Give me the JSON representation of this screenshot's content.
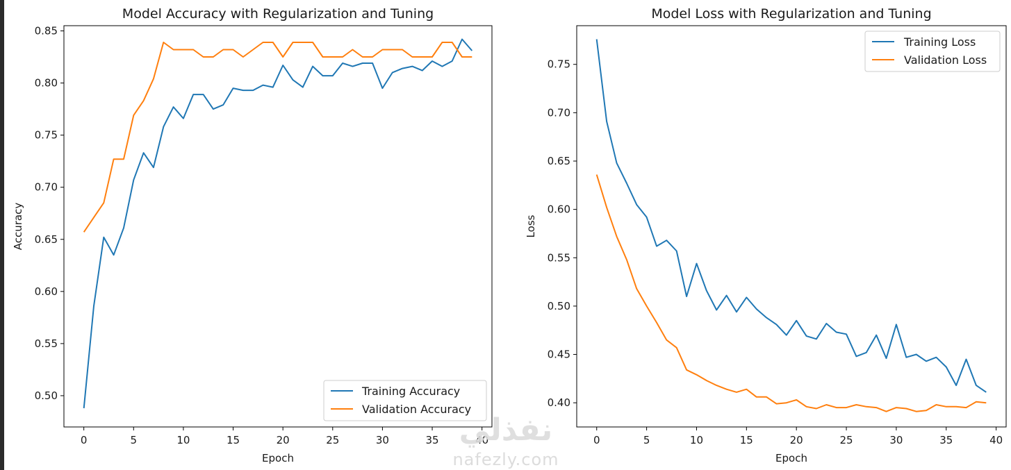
{
  "chart_data": [
    {
      "type": "line",
      "title": "Model Accuracy with Regularization and Tuning",
      "xlabel": "Epoch",
      "ylabel": "Accuracy",
      "xlim": [
        -2,
        41
      ],
      "ylim": [
        0.47,
        0.855
      ],
      "xticks": [
        0,
        5,
        10,
        15,
        20,
        25,
        30,
        35,
        40
      ],
      "yticks": [
        0.5,
        0.55,
        0.6,
        0.65,
        0.7,
        0.75,
        0.8,
        0.85
      ],
      "ytick_labels": [
        "0.50",
        "0.55",
        "0.60",
        "0.65",
        "0.70",
        "0.75",
        "0.80",
        "0.85"
      ],
      "legend_position": "lower-right",
      "series": [
        {
          "name": "Training Accuracy",
          "color": "#1f77b4",
          "x": [
            0,
            1,
            2,
            3,
            4,
            5,
            6,
            7,
            8,
            9,
            10,
            11,
            12,
            13,
            14,
            15,
            16,
            17,
            18,
            19,
            20,
            21,
            22,
            23,
            24,
            25,
            26,
            27,
            28,
            29,
            30,
            31,
            32,
            33,
            34,
            35,
            36,
            37,
            38,
            39
          ],
          "values": [
            0.488,
            0.586,
            0.652,
            0.635,
            0.661,
            0.707,
            0.733,
            0.719,
            0.758,
            0.777,
            0.766,
            0.789,
            0.789,
            0.775,
            0.779,
            0.795,
            0.793,
            0.793,
            0.798,
            0.796,
            0.817,
            0.803,
            0.796,
            0.816,
            0.807,
            0.807,
            0.819,
            0.816,
            0.819,
            0.819,
            0.795,
            0.81,
            0.814,
            0.816,
            0.812,
            0.821,
            0.816,
            0.821,
            0.842,
            0.831
          ]
        },
        {
          "name": "Validation Accuracy",
          "color": "#ff7f0e",
          "x": [
            0,
            1,
            2,
            3,
            4,
            5,
            6,
            7,
            8,
            9,
            10,
            11,
            12,
            13,
            14,
            15,
            16,
            17,
            18,
            19,
            20,
            21,
            22,
            23,
            24,
            25,
            26,
            27,
            28,
            29,
            30,
            31,
            32,
            33,
            34,
            35,
            36,
            37,
            38,
            39
          ],
          "values": [
            0.657,
            0.671,
            0.685,
            0.727,
            0.727,
            0.769,
            0.783,
            0.804,
            0.839,
            0.832,
            0.832,
            0.832,
            0.825,
            0.825,
            0.832,
            0.832,
            0.825,
            0.832,
            0.839,
            0.839,
            0.825,
            0.839,
            0.839,
            0.839,
            0.825,
            0.825,
            0.825,
            0.832,
            0.825,
            0.825,
            0.832,
            0.832,
            0.832,
            0.825,
            0.825,
            0.825,
            0.839,
            0.839,
            0.825,
            0.825
          ]
        }
      ]
    },
    {
      "type": "line",
      "title": "Model Loss with Regularization and Tuning",
      "xlabel": "Epoch",
      "ylabel": "Loss",
      "xlim": [
        -2,
        41
      ],
      "ylim": [
        0.375,
        0.79
      ],
      "xticks": [
        0,
        5,
        10,
        15,
        20,
        25,
        30,
        35,
        40
      ],
      "yticks": [
        0.4,
        0.45,
        0.5,
        0.55,
        0.6,
        0.65,
        0.7,
        0.75
      ],
      "ytick_labels": [
        "0.40",
        "0.45",
        "0.50",
        "0.55",
        "0.60",
        "0.65",
        "0.70",
        "0.75"
      ],
      "legend_position": "upper-right",
      "series": [
        {
          "name": "Training Loss",
          "color": "#1f77b4",
          "x": [
            0,
            1,
            2,
            3,
            4,
            5,
            6,
            7,
            8,
            9,
            10,
            11,
            12,
            13,
            14,
            15,
            16,
            17,
            18,
            19,
            20,
            21,
            22,
            23,
            24,
            25,
            26,
            27,
            28,
            29,
            30,
            31,
            32,
            33,
            34,
            35,
            36,
            37,
            38,
            39
          ],
          "values": [
            0.776,
            0.691,
            0.648,
            0.627,
            0.605,
            0.592,
            0.562,
            0.568,
            0.557,
            0.51,
            0.544,
            0.516,
            0.496,
            0.511,
            0.494,
            0.509,
            0.497,
            0.488,
            0.481,
            0.47,
            0.485,
            0.469,
            0.466,
            0.482,
            0.473,
            0.471,
            0.448,
            0.452,
            0.47,
            0.446,
            0.481,
            0.447,
            0.45,
            0.443,
            0.447,
            0.437,
            0.418,
            0.445,
            0.418,
            0.411
          ]
        },
        {
          "name": "Validation Loss",
          "color": "#ff7f0e",
          "x": [
            0,
            1,
            2,
            3,
            4,
            5,
            6,
            7,
            8,
            9,
            10,
            11,
            12,
            13,
            14,
            15,
            16,
            17,
            18,
            19,
            20,
            21,
            22,
            23,
            24,
            25,
            26,
            27,
            28,
            29,
            30,
            31,
            32,
            33,
            34,
            35,
            36,
            37,
            38,
            39
          ],
          "values": [
            0.636,
            0.602,
            0.572,
            0.548,
            0.518,
            0.5,
            0.483,
            0.465,
            0.457,
            0.434,
            0.429,
            0.423,
            0.418,
            0.414,
            0.411,
            0.414,
            0.406,
            0.406,
            0.399,
            0.4,
            0.403,
            0.396,
            0.394,
            0.398,
            0.395,
            0.395,
            0.398,
            0.396,
            0.395,
            0.391,
            0.395,
            0.394,
            0.391,
            0.392,
            0.398,
            0.396,
            0.396,
            0.395,
            0.401,
            0.4
          ]
        }
      ]
    }
  ],
  "watermark": {
    "arabic": "نفذلي",
    "latin": "nafezly.com"
  }
}
